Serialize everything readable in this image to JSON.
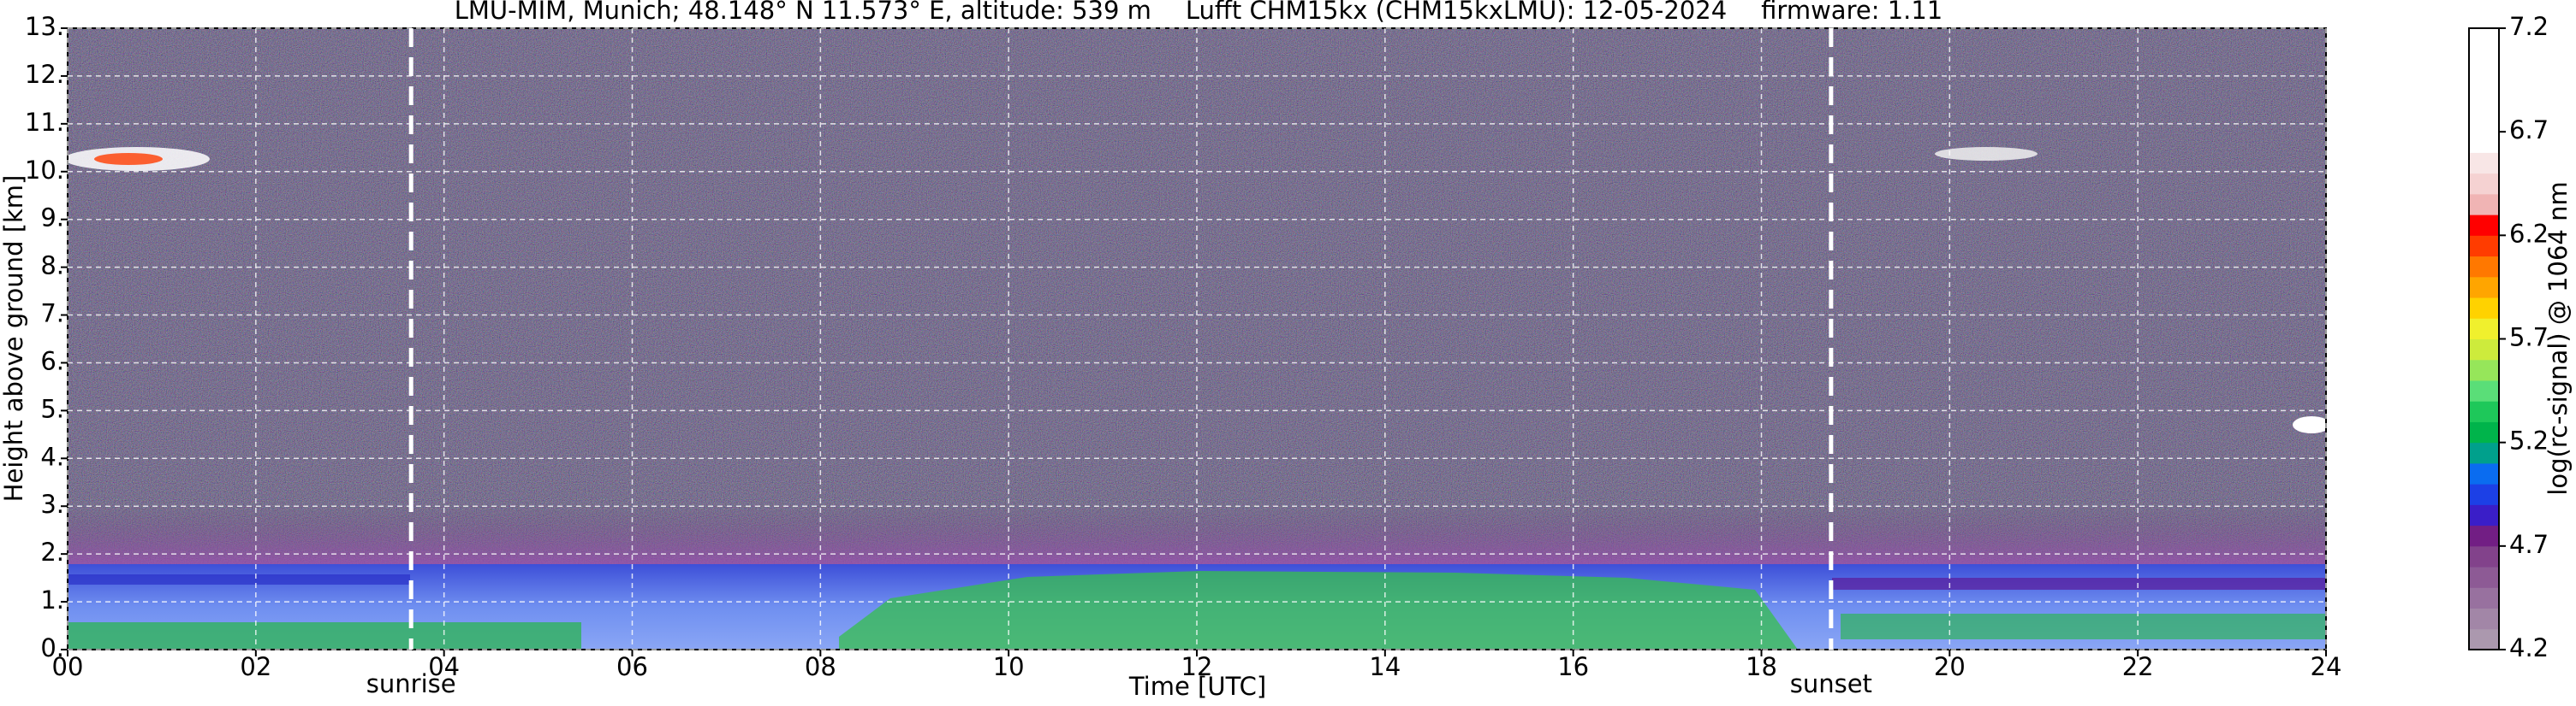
{
  "chart_data": {
    "type": "ceilometer",
    "title_parts": [
      "LMU-MIM, Munich; 48.148° N 11.573° E, altitude: 539 m",
      "Lufft CHM15kx (CHM15kxLMU): 12-05-2024",
      "firmware: 1.11"
    ],
    "xlabel": "Time [UTC]",
    "ylabel": "Height above ground [km]",
    "xlim": [
      0,
      24
    ],
    "xticks": [
      {
        "value": 0,
        "label": "00"
      },
      {
        "value": 2,
        "label": "02"
      },
      {
        "value": 4,
        "label": "04"
      },
      {
        "value": 6,
        "label": "06"
      },
      {
        "value": 8,
        "label": "08"
      },
      10,
      12,
      14,
      16,
      18,
      20,
      22,
      24
    ],
    "ylim": [
      0,
      13
    ],
    "yticks": [
      {
        "value": 0,
        "label": "0."
      },
      {
        "value": 1,
        "label": "1."
      },
      {
        "value": 2,
        "label": "2."
      },
      {
        "value": 3,
        "label": "3."
      },
      {
        "value": 4,
        "label": "4."
      },
      {
        "value": 5,
        "label": "5."
      },
      {
        "value": 6,
        "label": "6."
      },
      {
        "value": 7,
        "label": "7."
      },
      {
        "value": 8,
        "label": "8."
      },
      {
        "value": 9,
        "label": "9."
      },
      {
        "value": 10,
        "label": "10."
      },
      {
        "value": 11,
        "label": "11."
      },
      {
        "value": 12,
        "label": "12."
      },
      {
        "value": 13,
        "label": "13."
      }
    ],
    "grid": true,
    "markers": [
      {
        "label": "sunrise",
        "x": 3.65
      },
      {
        "label": "sunset",
        "x": 18.74
      }
    ],
    "colorbar": {
      "label": "log(rc-signal) @ 1064 nm",
      "lim": [
        4.2,
        7.2
      ],
      "ticks": [
        4.2,
        4.7,
        5.2,
        5.7,
        6.2,
        6.7,
        7.2
      ],
      "colors": [
        "#ab98ae",
        "#a286a7",
        "#98719f",
        "#8d5a95",
        "#82428b",
        "#721e84",
        "#3a1ec8",
        "#1c40e6",
        "#0a6cf0",
        "#00a08c",
        "#00b44b",
        "#1ec85a",
        "#5ade78",
        "#96e65a",
        "#cdeb3c",
        "#f0f02d",
        "#ffd200",
        "#ffa500",
        "#ff7800",
        "#ff3c00",
        "#ff0000",
        "#f0b4b4",
        "#f5d2d2",
        "#f8e6e6",
        "#ffffff",
        "#ffffff",
        "#ffffff",
        "#ffffff",
        "#ffffff",
        "#ffffff"
      ]
    }
  }
}
